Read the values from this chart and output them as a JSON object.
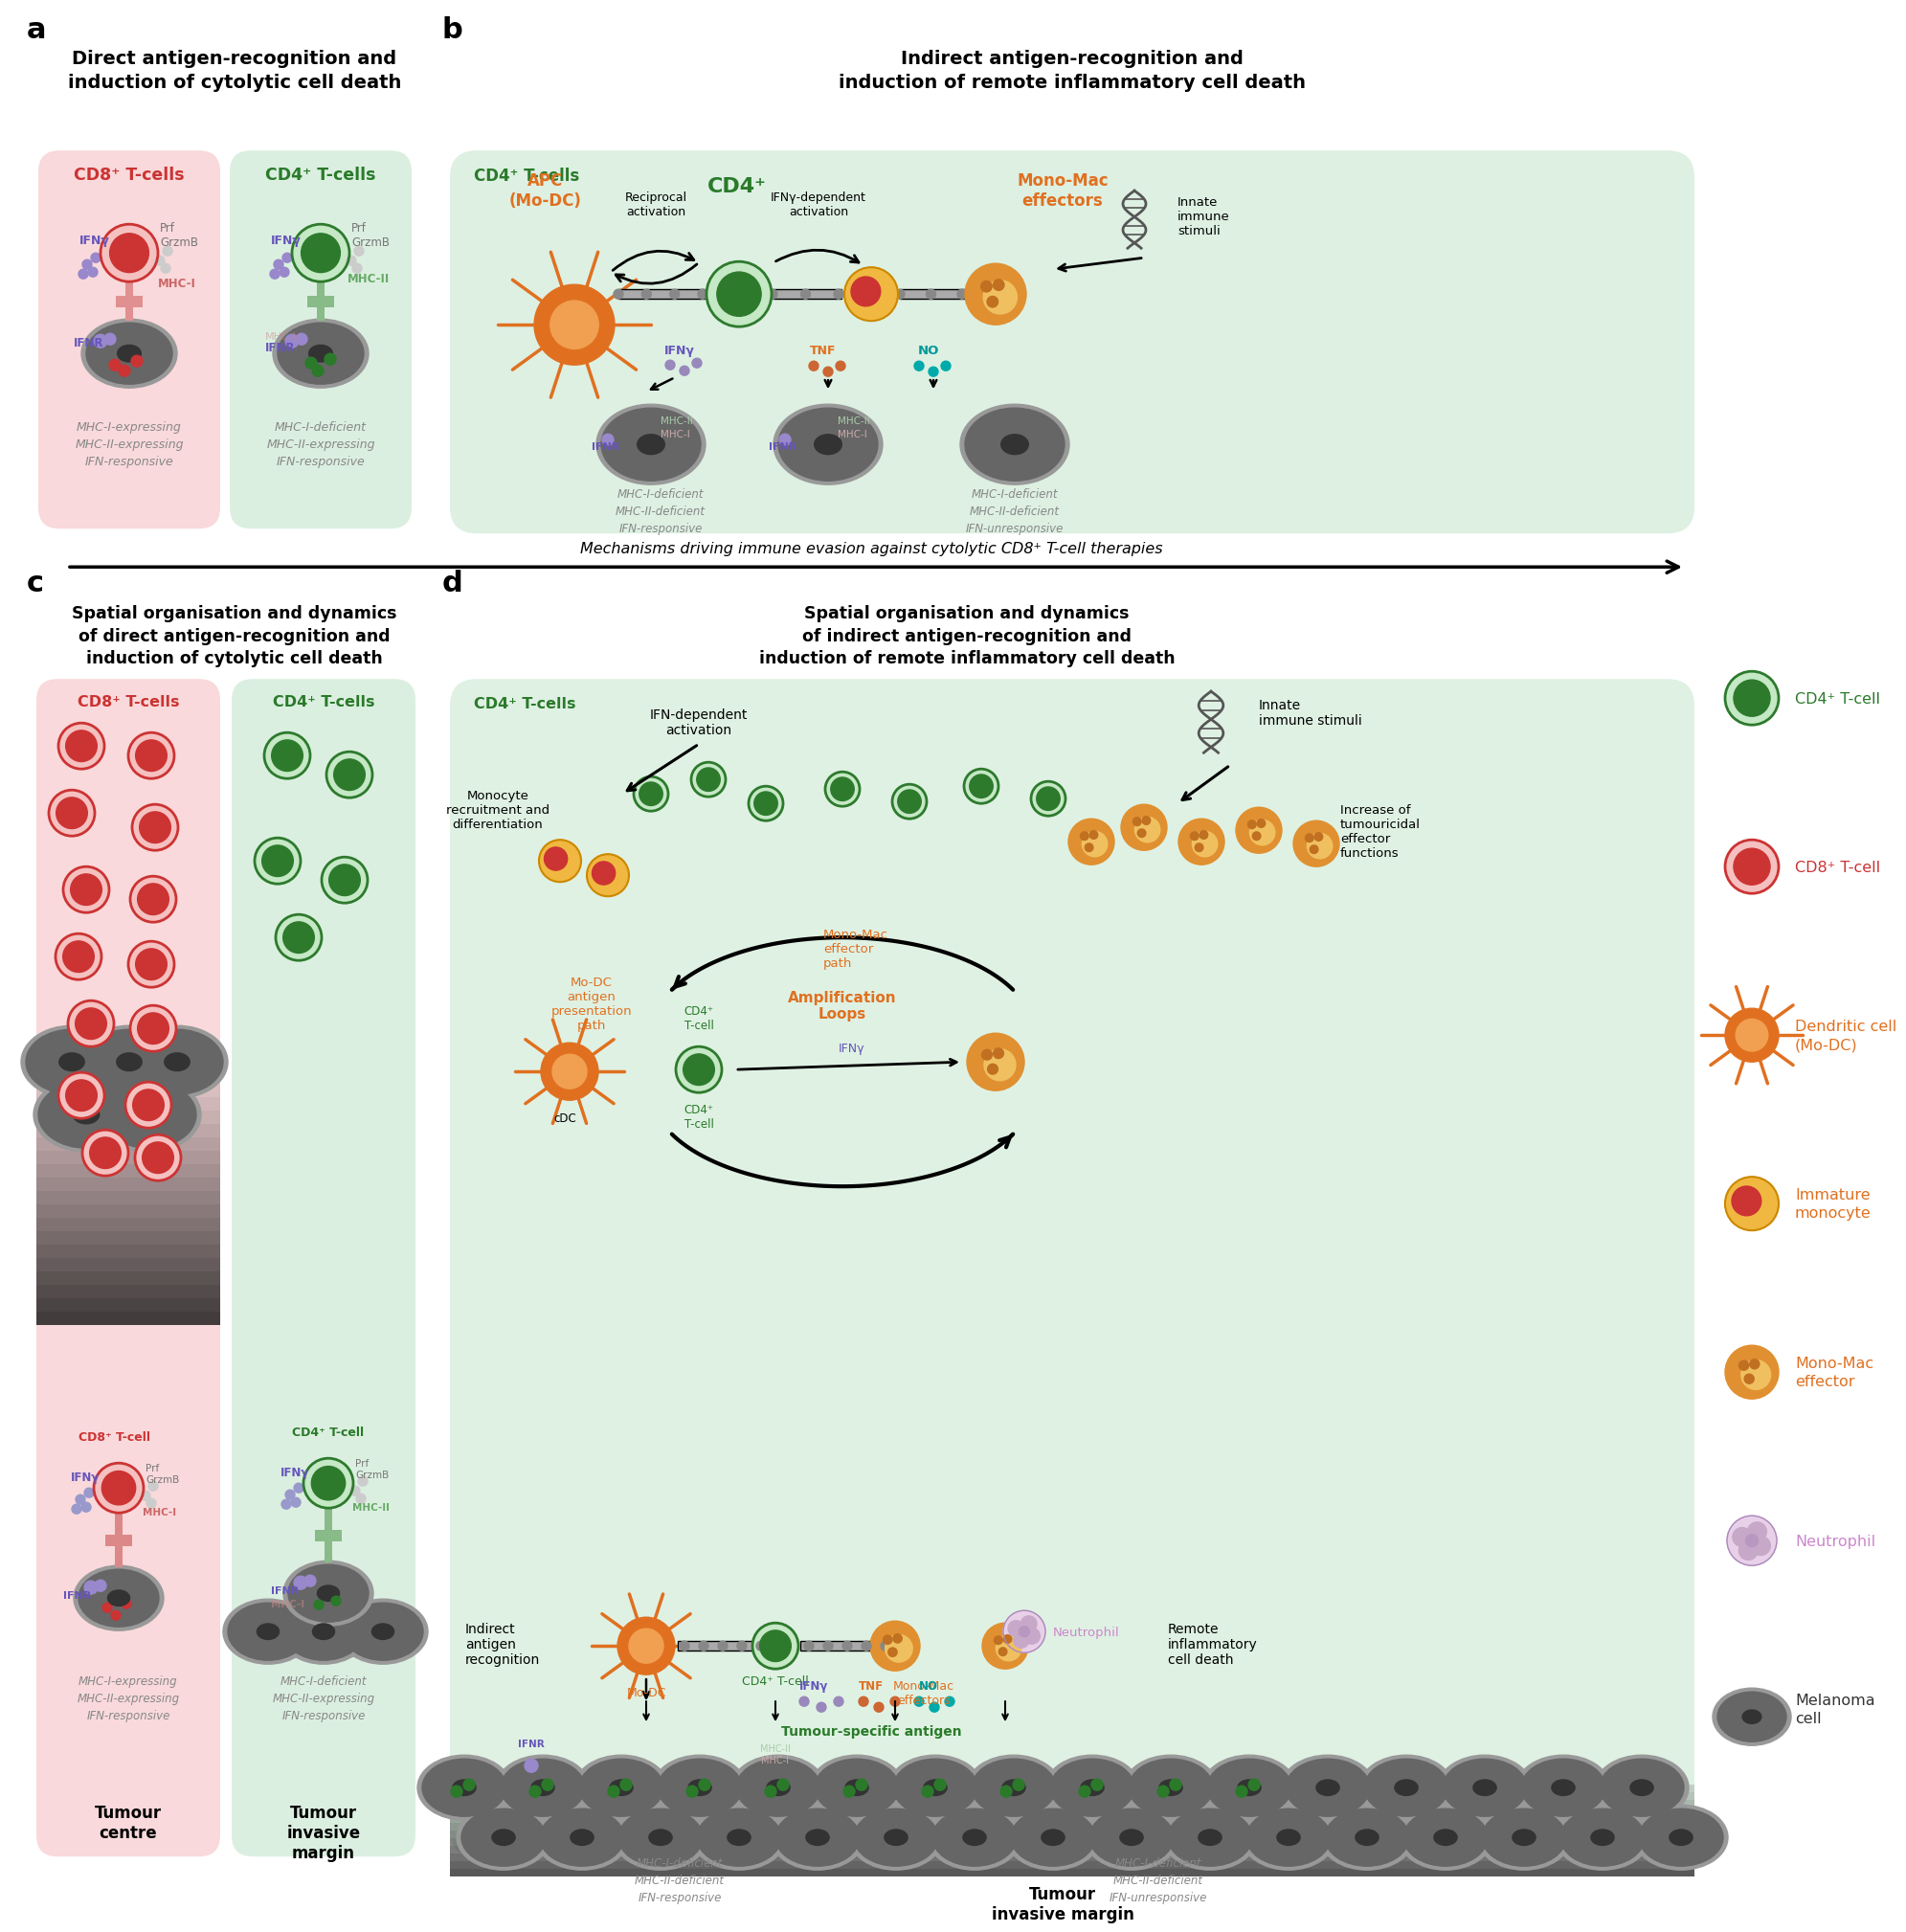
{
  "background_color": "#ffffff",
  "colors": {
    "cd4_green": "#2a7a2a",
    "cd8_red": "#cc3333",
    "orange": "#e07020",
    "orange_dark": "#cc5500",
    "pink_bg": "#f9d5d8",
    "green_bg": "#d8eedd",
    "gray": "#888888",
    "dark_gray": "#555555",
    "neutrophil_purple": "#cc88cc",
    "ifny_purple": "#6655bb",
    "prf_color": "#777777",
    "teal": "#009999",
    "mhc1_color": "#cc8888",
    "mhc2_color": "#88bb88"
  },
  "panel_a": {
    "label": "a",
    "title": "Direct antigen-recognition and\ninduction of cytolytic cell death",
    "cd8_label": "CD8⁺ T-cells",
    "cd4_label": "CD4⁺ T-cells",
    "cd8_bottom": "MHC-I-expressing\nMHC-II-expressing\nIFN-responsive",
    "cd4_bottom": "MHC-I-deficient\nMHC-II-expressing\nIFN-responsive"
  },
  "panel_b": {
    "label": "b",
    "title": "Indirect antigen-recognition and\ninduction of remote inflammatory cell death",
    "cd4_label": "CD4⁺ T-cells",
    "apc_label": "APC\n(Mo-DC)",
    "cd4_center": "CD4⁺",
    "mono_mac": "Mono-Mac\neffectors",
    "reciprocal": "Reciprocal\nactivation",
    "ifny_dep": "IFNγ-dependent\nactivation",
    "innate": "Innate\nimmune\nstimuli",
    "mhc_left": "MHC-I-deficient\nMHC-II-deficient\nIFN-responsive",
    "mhc_right": "MHC-I-deficient\nMHC-II-deficient\nIFN-unresponsive"
  },
  "arrow_text": "Mechanisms driving immune evasion against cytolytic CD8⁺ T-cell therapies",
  "panel_c": {
    "label": "c",
    "title": "Spatial organisation and dynamics\nof direct antigen-recognition and\ninduction of cytolytic cell death",
    "cd8_label": "CD8⁺ T-cells",
    "cd4_label": "CD4⁺ T-cells",
    "cd8_tcell": "CD8⁺ T-cell",
    "cd4_tcell": "CD4⁺ T-cell",
    "mhc_left": "MHC-I-expressing\nMHC-II-expressing\nIFN-responsive",
    "mhc_right": "MHC-I-deficient\nMHC-II-expressing\nIFN-responsive",
    "tumour_centre": "Tumour\ncentre",
    "tumour_invasive": "Tumour\ninvasive\nmargin"
  },
  "panel_d": {
    "label": "d",
    "title": "Spatial organisation and dynamics\nof indirect antigen-recognition and\ninduction of remote inflammatory cell death",
    "cd4_label": "CD4⁺ T-cells",
    "ifn_dep": "IFN-dependent\nactivation",
    "monocyte": "Monocyte\nrecruitment and\ndifferentiation",
    "innate": "Innate\nimmune stimuli",
    "increase": "Increase of\ntumouricidal\neffector\nfunctions",
    "mono_mac_path": "Mono-Mac\neffector\npath",
    "mo_dc_path": "Mo-DC\nantigen\npresentation\npath",
    "cd4_tcell": "CD4⁺\nT-cell",
    "amp_loops": "Amplification\nLoops",
    "indirect": "Indirect\nantigen\nrecognition",
    "remote": "Remote\ninflammatory\ncell death",
    "tumour_specific": "Tumour-specific antigen",
    "neutrophil": "Neutrophil",
    "mhc_left": "MHC-I-deficient\nMHC-II-deficient\nIFN-responsive",
    "mhc_right": "MHC-I-deficient\nMHC-II-deficient\nIFN-unresponsive",
    "tumour_invasive": "Tumour\ninvasive margin"
  },
  "legend": [
    {
      "label": "CD4⁺ T-cell",
      "color": "#2a7a2a",
      "type": "cd4"
    },
    {
      "label": "CD8⁺ T-cell",
      "color": "#cc3333",
      "type": "cd8"
    },
    {
      "label": "Dendritic cell\n(Mo-DC)",
      "color": "#e07020",
      "type": "dc"
    },
    {
      "label": "Immature\nmonocyte",
      "color": "#e07020",
      "type": "im"
    },
    {
      "label": "Mono-Mac\neffector",
      "color": "#e07020",
      "type": "mm"
    },
    {
      "label": "Neutrophil",
      "color": "#cc88cc",
      "type": "neu"
    },
    {
      "label": "Melanoma\ncell",
      "color": "#333333",
      "type": "mel"
    }
  ]
}
